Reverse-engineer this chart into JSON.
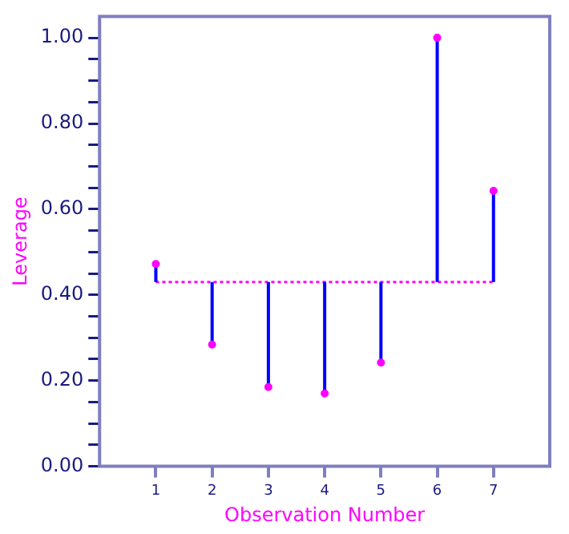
{
  "chart_data": {
    "type": "scatter",
    "xlabel": "Observation Number",
    "ylabel": "Leverage",
    "x": [
      1,
      2,
      3,
      4,
      5,
      6,
      7
    ],
    "series": [
      {
        "color": "#ff00ff",
        "values": [
          0.472,
          0.284,
          0.185,
          0.17,
          0.242,
          1.0,
          0.643
        ],
        "errors": [
          [
            0.43,
            0.472
          ],
          [
            0.284,
            0.43
          ],
          [
            0.185,
            0.43
          ],
          [
            0.17,
            0.43
          ],
          [
            0.242,
            0.43
          ],
          [
            0.43,
            1.0
          ],
          [
            0.43,
            0.643
          ]
        ]
      }
    ],
    "xlim": [
      0,
      8
    ],
    "xticks": [
      1,
      2,
      3,
      4,
      5,
      6,
      7
    ],
    "ylim": [
      0,
      1.05
    ],
    "yticks": [
      {
        "value": 0,
        "label": "0.00"
      },
      {
        "value": 0.05,
        "label": null
      },
      {
        "value": 0.1,
        "label": null
      },
      {
        "value": 0.15,
        "label": null
      },
      {
        "value": 0.2,
        "label": "0.20"
      },
      {
        "value": 0.25,
        "label": null
      },
      {
        "value": 0.3,
        "label": null
      },
      {
        "value": 0.35,
        "label": null
      },
      {
        "value": 0.4,
        "label": "0.40"
      },
      {
        "value": 0.45,
        "label": null
      },
      {
        "value": 0.5,
        "label": null
      },
      {
        "value": 0.55,
        "label": null
      },
      {
        "value": 0.6,
        "label": "0.60"
      },
      {
        "value": 0.65,
        "label": null
      },
      {
        "value": 0.7,
        "label": null
      },
      {
        "value": 0.75,
        "label": null
      },
      {
        "value": 0.8,
        "label": "0.80"
      },
      {
        "value": 0.85,
        "label": null
      },
      {
        "value": 0.9,
        "label": null
      },
      {
        "value": 0.95,
        "label": null
      },
      {
        "value": 1.0,
        "label": "1.00"
      }
    ],
    "ref_lines": [
      {
        "axis": "y",
        "value": 0.43,
        "color": "#ff00ff",
        "line_style": "dotted"
      }
    ],
    "marker": "circle",
    "grid": false,
    "legend": false
  }
}
